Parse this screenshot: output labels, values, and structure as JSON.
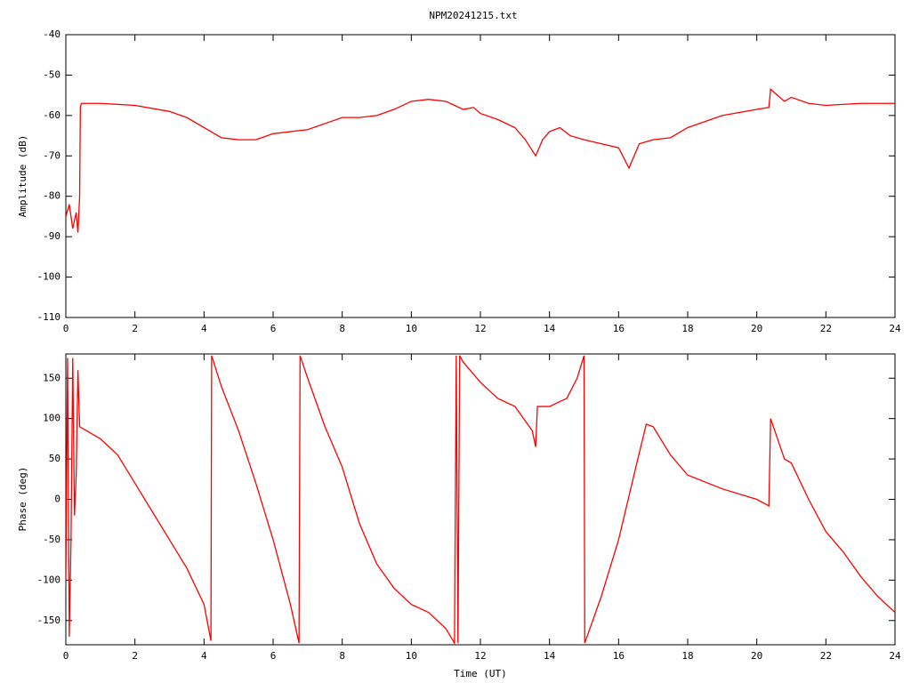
{
  "chart_data": [
    {
      "type": "line",
      "title": "NPM20241215.txt",
      "y_label": "Amplitude (dB)",
      "xlim": [
        0,
        24
      ],
      "xticks": [
        0,
        2,
        4,
        6,
        8,
        10,
        12,
        14,
        16,
        18,
        20,
        22,
        24
      ],
      "ylim": [
        -110,
        -40
      ],
      "yticks": [
        -110,
        -100,
        -90,
        -80,
        -70,
        -60,
        -50,
        -40
      ],
      "grid": false,
      "series": [
        {
          "color": "#ff0000",
          "x": [
            0,
            0.1,
            0.2,
            0.3,
            0.35,
            0.4,
            0.42,
            0.45,
            1,
            2,
            3,
            3.5,
            4,
            4.5,
            5,
            5.5,
            6,
            7,
            7.5,
            8,
            8.5,
            9,
            9.5,
            10,
            10.5,
            11,
            11.5,
            11.8,
            12,
            12.5,
            13,
            13.3,
            13.6,
            13.8,
            14,
            14.3,
            14.6,
            15,
            15.5,
            16,
            16.3,
            16.6,
            17,
            17.5,
            18,
            19,
            20,
            20.35,
            20.4,
            20.8,
            21,
            21.5,
            22,
            23,
            24
          ],
          "values": [
            -85,
            -82,
            -88,
            -84,
            -89,
            -80,
            -58,
            -57,
            -57,
            -57.5,
            -59,
            -60.5,
            -63,
            -65.5,
            -66,
            -66,
            -64.5,
            -63.5,
            -62,
            -60.5,
            -60.5,
            -60,
            -58.5,
            -56.5,
            -56,
            -56.5,
            -58.5,
            -58,
            -59.5,
            -61,
            -63,
            -66,
            -70,
            -66,
            -64,
            -63,
            -65,
            -66,
            -67,
            -68,
            -73,
            -67,
            -66,
            -65.5,
            -63,
            -60,
            -58.5,
            -58,
            -53.5,
            -56.5,
            -55.5,
            -57,
            -57.5,
            -57,
            -57
          ]
        }
      ]
    },
    {
      "type": "line",
      "x_label": "Time (UT)",
      "y_label": "Phase (deg)",
      "xlim": [
        0,
        24
      ],
      "xticks": [
        0,
        2,
        4,
        6,
        8,
        10,
        12,
        14,
        16,
        18,
        20,
        22,
        24
      ],
      "ylim": [
        -180,
        180
      ],
      "yticks": [
        -150,
        -100,
        -50,
        0,
        50,
        100,
        150
      ],
      "grid": false,
      "series": [
        {
          "color": "#ff0000",
          "x": [
            0,
            0.05,
            0.1,
            0.15,
            0.2,
            0.25,
            0.3,
            0.35,
            0.4,
            0.6,
            1,
            1.5,
            2,
            2.5,
            3,
            3.5,
            4,
            4.2,
            4.22,
            4.5,
            5,
            5.5,
            6,
            6.5,
            6.75,
            6.78,
            7,
            7.5,
            8,
            8.5,
            9,
            9.5,
            10,
            10.5,
            11,
            11.25,
            11.3,
            11.35,
            11.4,
            11.5,
            12,
            12.5,
            13,
            13.5,
            13.6,
            13.65,
            14,
            14.5,
            14.8,
            15,
            15.02,
            15.5,
            16,
            16.5,
            16.8,
            17,
            17.5,
            18,
            19,
            20,
            20.35,
            20.4,
            20.8,
            21,
            21.5,
            22,
            22.5,
            22.7,
            23,
            23.5,
            24
          ],
          "values": [
            -100,
            175,
            -170,
            -50,
            175,
            -20,
            30,
            160,
            90,
            85,
            75,
            55,
            20,
            -15,
            -50,
            -85,
            -130,
            -175,
            178,
            140,
            85,
            20,
            -50,
            -130,
            -178,
            178,
            150,
            90,
            40,
            -30,
            -80,
            -110,
            -130,
            -140,
            -160,
            -178,
            178,
            -178,
            178,
            170,
            145,
            125,
            115,
            85,
            65,
            115,
            115,
            125,
            150,
            178,
            -178,
            -120,
            -50,
            40,
            93,
            90,
            55,
            30,
            13,
            0,
            -8,
            100,
            50,
            45,
            0,
            -40,
            -65,
            -77,
            -95,
            -120,
            -140
          ]
        }
      ]
    }
  ]
}
